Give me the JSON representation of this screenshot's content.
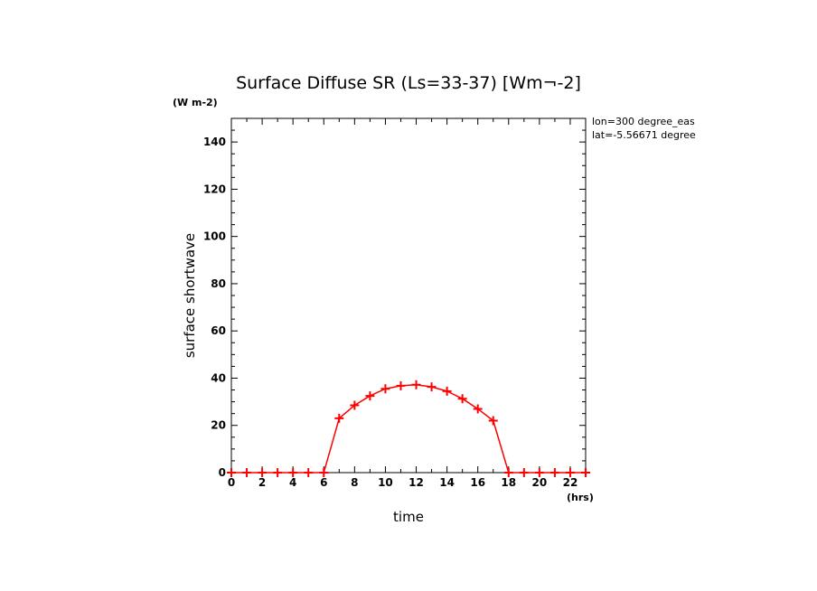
{
  "chart_data": {
    "type": "line",
    "title": "Surface Diffuse SR (Ls=33-37) [Wm¬-2]",
    "y_unit": "(W m-2)",
    "x_unit": "(hrs)",
    "xlabel": "time",
    "ylabel": "surface shortwave",
    "xlim": [
      0,
      23
    ],
    "ylim": [
      0,
      150
    ],
    "x_ticks": [
      "0",
      "2",
      "4",
      "6",
      "8",
      "10",
      "12",
      "14",
      "16",
      "18",
      "20",
      "22"
    ],
    "y_ticks": [
      "0",
      "20",
      "40",
      "60",
      "80",
      "100",
      "120",
      "140"
    ],
    "annotations": [
      "lon=300 degree_eas",
      "lat=-5.56671 degree"
    ],
    "grid": false,
    "marker": "plus",
    "series": [
      {
        "color": "#ff0000",
        "x": [
          0,
          1,
          2,
          3,
          4,
          5,
          6,
          7,
          8,
          9,
          10,
          11,
          12,
          13,
          14,
          15,
          16,
          17,
          18,
          19,
          20,
          21,
          22,
          23
        ],
        "y": [
          0,
          0,
          0,
          0,
          0,
          0,
          0,
          23,
          28.5,
          32.5,
          35.5,
          36.8,
          37.2,
          36.3,
          34.5,
          31.3,
          27,
          22,
          0,
          0,
          0,
          0,
          0,
          0
        ]
      }
    ]
  }
}
